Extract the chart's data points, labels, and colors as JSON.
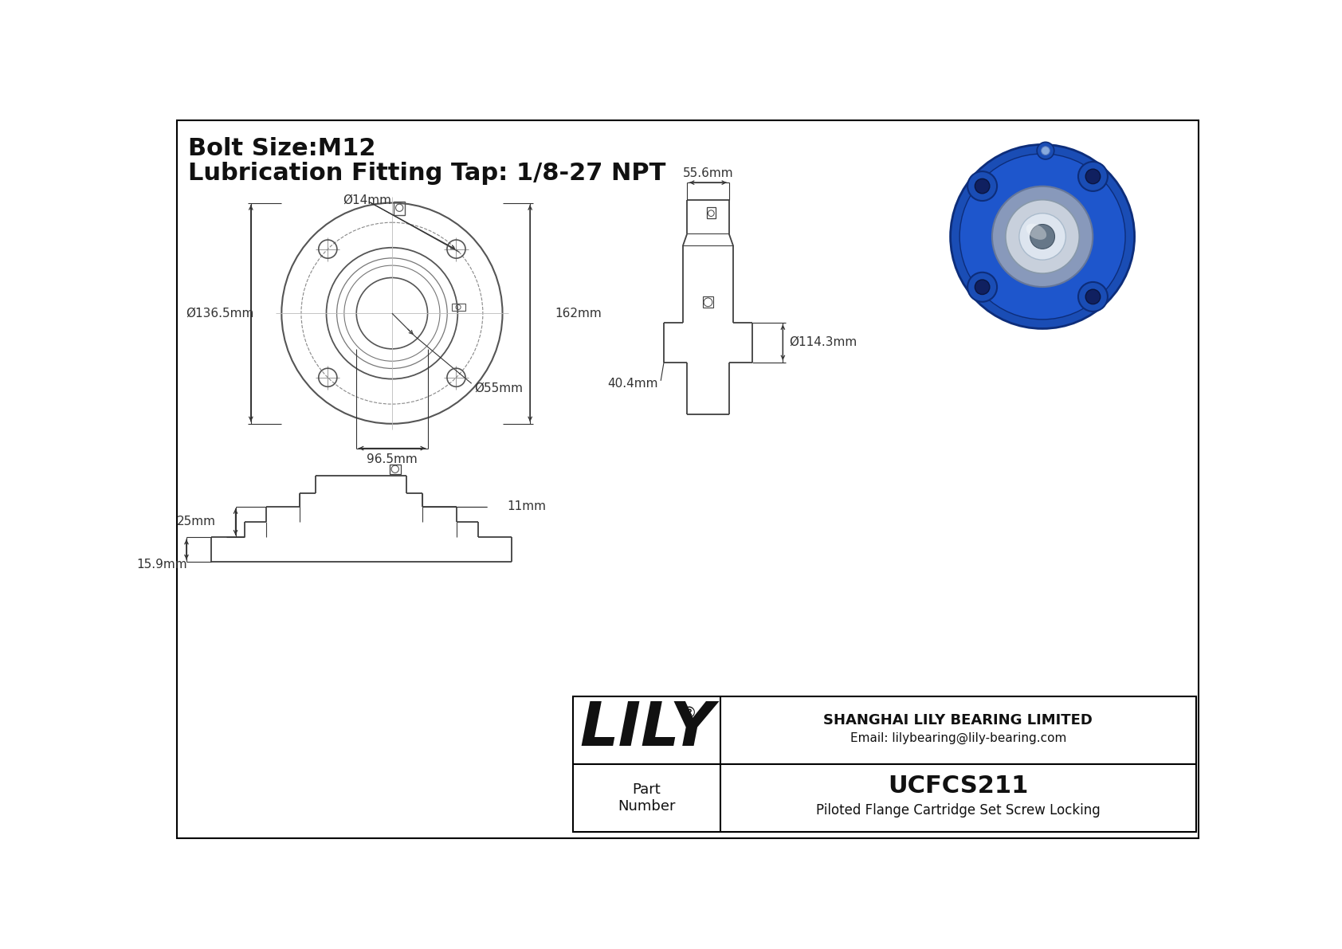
{
  "bg_color": "#ffffff",
  "border_color": "#000000",
  "line_color": "#404040",
  "dim_color": "#333333",
  "title_line1": "Bolt Size:M12",
  "title_line2": "Lubrication Fitting Tap: 1/8-27 NPT",
  "dims": {
    "phi14": "Ø14mm",
    "phi136_5": "Ø136.5mm",
    "phi55": "Ø55mm",
    "phi114_3": "Ø114.3mm",
    "d162": "162mm",
    "d96_5": "96.5mm",
    "d55_6": "55.6mm",
    "d40_4": "40.4mm",
    "d25": "25mm",
    "d11": "11mm",
    "d15_9": "15.9mm"
  },
  "table": {
    "company": "SHANGHAI LILY BEARING LIMITED",
    "email": "Email: lilybearing@lily-bearing.com",
    "lily_logo": "LILY",
    "lily_reg": "®",
    "part_label": "Part\nNumber",
    "part_number": "UCFCS211",
    "part_desc": "Piloted Flange Cartridge Set Screw Locking"
  }
}
